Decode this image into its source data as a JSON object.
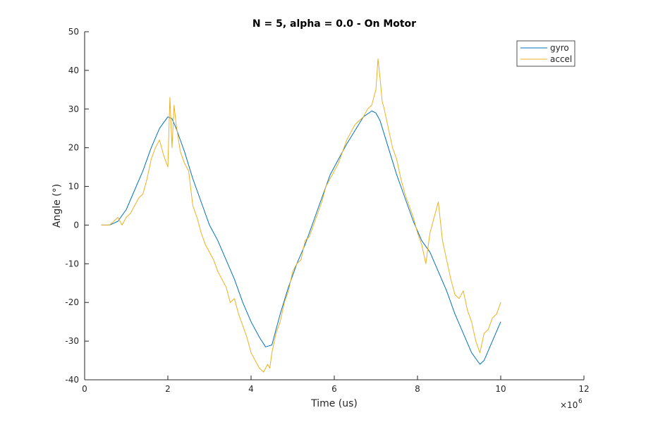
{
  "chart_data": {
    "type": "line",
    "title": "N = 5, alpha = 0.0 - On Motor",
    "xlabel": "Time (us)",
    "ylabel": "Angle (°)",
    "x_exponent_label": "×10",
    "x_exponent_power": "6",
    "xlim": [
      0,
      12
    ],
    "ylim": [
      -40,
      50
    ],
    "x_ticks": [
      "0",
      "2",
      "4",
      "6",
      "8",
      "10",
      "12"
    ],
    "y_ticks": [
      "50",
      "40",
      "30",
      "20",
      "10",
      "0",
      "-10",
      "-20",
      "-30",
      "-40"
    ],
    "grid": false,
    "legend_position": "top-right",
    "series": [
      {
        "name": "gyro",
        "color": "#0072BD",
        "x": [
          0.4,
          0.6,
          0.8,
          1.0,
          1.2,
          1.4,
          1.6,
          1.8,
          2.0,
          2.1,
          2.2,
          2.4,
          2.6,
          2.8,
          3.0,
          3.2,
          3.4,
          3.6,
          3.8,
          4.0,
          4.2,
          4.35,
          4.5,
          4.7,
          4.9,
          5.1,
          5.3,
          5.5,
          5.7,
          5.9,
          6.1,
          6.3,
          6.5,
          6.7,
          6.9,
          7.0,
          7.1,
          7.3,
          7.5,
          7.7,
          7.9,
          8.1,
          8.3,
          8.5,
          8.7,
          8.9,
          9.1,
          9.3,
          9.5,
          9.6,
          9.8,
          10.0
        ],
        "y": [
          0,
          0,
          1,
          4,
          9,
          14,
          20,
          25,
          28,
          27.5,
          25,
          19,
          12,
          6,
          0,
          -4,
          -9,
          -14,
          -20,
          -25,
          -29,
          -31.5,
          -31,
          -23,
          -16,
          -10,
          -5,
          1,
          7,
          13,
          17,
          21,
          24.5,
          28,
          29.5,
          29,
          27,
          20,
          13,
          7,
          1,
          -4,
          -7,
          -12,
          -17,
          -23,
          -28,
          -33,
          -36,
          -35,
          -30,
          -25
        ]
      },
      {
        "name": "accel",
        "color": "#EDB120",
        "x": [
          0.4,
          0.6,
          0.8,
          0.9,
          1.0,
          1.1,
          1.2,
          1.3,
          1.4,
          1.5,
          1.6,
          1.7,
          1.8,
          1.9,
          2.0,
          2.05,
          2.1,
          2.15,
          2.2,
          2.3,
          2.4,
          2.5,
          2.6,
          2.7,
          2.8,
          2.9,
          3.0,
          3.1,
          3.2,
          3.3,
          3.4,
          3.5,
          3.6,
          3.7,
          3.8,
          3.9,
          4.0,
          4.1,
          4.2,
          4.3,
          4.4,
          4.45,
          4.5,
          4.6,
          4.7,
          4.8,
          4.9,
          5.0,
          5.1,
          5.2,
          5.3,
          5.4,
          5.5,
          5.6,
          5.7,
          5.8,
          5.9,
          6.0,
          6.1,
          6.2,
          6.3,
          6.4,
          6.5,
          6.6,
          6.7,
          6.8,
          6.9,
          7.0,
          7.05,
          7.1,
          7.15,
          7.2,
          7.3,
          7.4,
          7.5,
          7.6,
          7.7,
          7.8,
          7.9,
          8.0,
          8.1,
          8.2,
          8.3,
          8.4,
          8.5,
          8.6,
          8.7,
          8.8,
          8.9,
          9.0,
          9.1,
          9.2,
          9.3,
          9.4,
          9.5,
          9.6,
          9.7,
          9.8,
          9.9,
          10.0
        ],
        "y": [
          0,
          0,
          2,
          0,
          2,
          3,
          5,
          7,
          8,
          12,
          17,
          20,
          22,
          18,
          15,
          33,
          20,
          31,
          26,
          19,
          16,
          14,
          5,
          2,
          -2,
          -5,
          -7,
          -9,
          -12,
          -14,
          -16,
          -20,
          -19,
          -23,
          -26,
          -29,
          -33,
          -35,
          -37,
          -38,
          -36,
          -37,
          -33,
          -28,
          -25,
          -20,
          -17,
          -12,
          -10,
          -9,
          -4,
          -3,
          0,
          3,
          6,
          10,
          12,
          14,
          16,
          19,
          22,
          24,
          26,
          27,
          28,
          30,
          31,
          35,
          43,
          38,
          32,
          30,
          25,
          20,
          17,
          12,
          8,
          5,
          2,
          -2,
          -5,
          -10,
          -2,
          2,
          6,
          -4,
          -9,
          -14,
          -18,
          -19,
          -17,
          -22,
          -25,
          -30,
          -33,
          -28,
          -27,
          -24,
          -23,
          -20
        ]
      }
    ]
  }
}
